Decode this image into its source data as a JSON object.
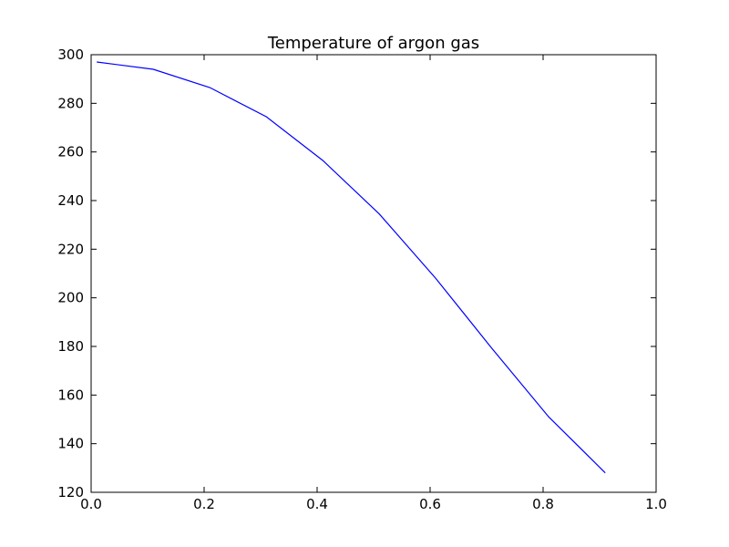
{
  "chart_data": {
    "type": "line",
    "title": "Temperature of argon gas",
    "xlabel": "",
    "ylabel": "",
    "xlim": [
      0.0,
      1.0
    ],
    "ylim": [
      120,
      300
    ],
    "x_ticks": [
      "0.0",
      "0.2",
      "0.4",
      "0.6",
      "0.8",
      "1.0"
    ],
    "y_ticks": [
      "120",
      "140",
      "160",
      "180",
      "200",
      "220",
      "240",
      "260",
      "280",
      "300"
    ],
    "grid": false,
    "series": [
      {
        "color": "#0000ff",
        "x": [
          0.01,
          0.11,
          0.21,
          0.31,
          0.41,
          0.51,
          0.61,
          0.71,
          0.81,
          0.91
        ],
        "y": [
          297,
          294,
          286.5,
          274.5,
          256.5,
          234.5,
          208,
          179,
          151,
          128
        ]
      }
    ]
  }
}
